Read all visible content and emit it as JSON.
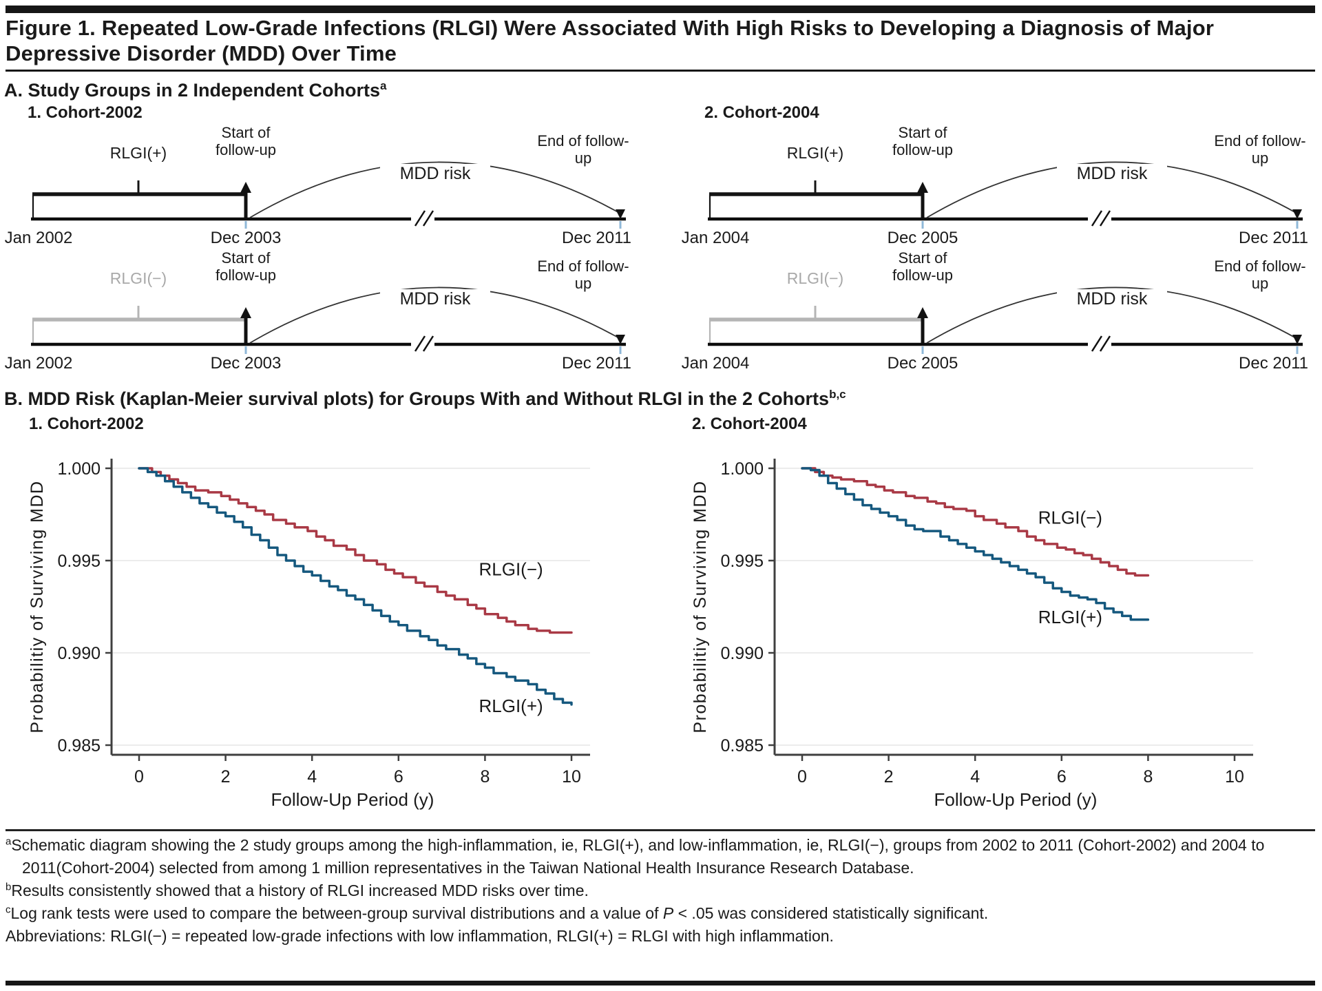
{
  "figure": {
    "title": "Figure 1. Repeated Low-Grade Infections (RLGI) Were Associated With High Risks to Developing a Diagnosis of Major Depressive Disorder (MDD) Over Time"
  },
  "panel_a": {
    "heading": "A. Study Groups in 2 Independent Cohorts",
    "heading_sup": "a",
    "labels": {
      "start": "Start of follow-up",
      "end": "End of follow-up",
      "risk": "MDD risk"
    },
    "cohorts": [
      {
        "title": "1. Cohort-2002",
        "dates": [
          "Jan 2002",
          "Dec 2003",
          "Dec 2011"
        ],
        "rows": [
          {
            "group": "RLGI(+)"
          },
          {
            "group": "RLGI(−)"
          }
        ]
      },
      {
        "title": "2. Cohort-2004",
        "dates": [
          "Jan 2004",
          "Dec 2005",
          "Dec 2011"
        ],
        "rows": [
          {
            "group": "RLGI(+)"
          },
          {
            "group": "RLGI(−)"
          }
        ]
      }
    ]
  },
  "panel_b": {
    "heading": "B. MDD Risk (Kaplan-Meier survival plots) for Groups With and Without RLGI in the 2 Cohorts",
    "heading_sup": "b,c"
  },
  "chart_data": [
    {
      "type": "line",
      "title": "1. Cohort-2002",
      "xlabel": "Follow-Up Period (y)",
      "ylabel": "Probabilitiy of Surviving MDD",
      "xlim": [
        0,
        10
      ],
      "xticks": [
        0,
        2,
        4,
        6,
        8,
        10
      ],
      "ytick_values": [
        1.0,
        0.995,
        0.99,
        0.985
      ],
      "ytick_labels": [
        "1.000",
        "0.995",
        "0.990",
        "0.985"
      ],
      "grid": "horizontal-faint",
      "legend_position": "inline-labels",
      "series": [
        {
          "name": "RLGI(−)",
          "color": "#a93945",
          "label_pos": [
            8.6,
            0.9942
          ],
          "points": [
            [
              0,
              1.0
            ],
            [
              0.3,
              0.9998
            ],
            [
              0.5,
              0.9996
            ],
            [
              0.7,
              0.9994
            ],
            [
              0.9,
              0.9992
            ],
            [
              1.1,
              0.999
            ],
            [
              1.3,
              0.9988
            ],
            [
              1.6,
              0.9987
            ],
            [
              1.9,
              0.9985
            ],
            [
              2.1,
              0.9983
            ],
            [
              2.3,
              0.9981
            ],
            [
              2.5,
              0.9979
            ],
            [
              2.7,
              0.9977
            ],
            [
              2.9,
              0.9975
            ],
            [
              3.1,
              0.9972
            ],
            [
              3.4,
              0.997
            ],
            [
              3.6,
              0.9968
            ],
            [
              3.9,
              0.9966
            ],
            [
              4.1,
              0.9963
            ],
            [
              4.3,
              0.9961
            ],
            [
              4.5,
              0.9958
            ],
            [
              4.8,
              0.9956
            ],
            [
              5.0,
              0.9953
            ],
            [
              5.2,
              0.995
            ],
            [
              5.5,
              0.9948
            ],
            [
              5.7,
              0.9945
            ],
            [
              5.9,
              0.9943
            ],
            [
              6.1,
              0.9941
            ],
            [
              6.4,
              0.9938
            ],
            [
              6.6,
              0.9936
            ],
            [
              6.9,
              0.9933
            ],
            [
              7.1,
              0.9931
            ],
            [
              7.3,
              0.9929
            ],
            [
              7.6,
              0.9926
            ],
            [
              7.8,
              0.9924
            ],
            [
              8.0,
              0.9921
            ],
            [
              8.3,
              0.9919
            ],
            [
              8.5,
              0.9917
            ],
            [
              8.7,
              0.9915
            ],
            [
              9.0,
              0.9913
            ],
            [
              9.2,
              0.9912
            ],
            [
              9.5,
              0.9911
            ],
            [
              9.7,
              0.9911
            ],
            [
              10.0,
              0.9911
            ]
          ]
        },
        {
          "name": "RLGI(+)",
          "color": "#15587e",
          "label_pos": [
            8.6,
            0.9868
          ],
          "points": [
            [
              0,
              1.0
            ],
            [
              0.2,
              0.9998
            ],
            [
              0.4,
              0.9996
            ],
            [
              0.6,
              0.9993
            ],
            [
              0.8,
              0.999
            ],
            [
              1.0,
              0.9987
            ],
            [
              1.2,
              0.9984
            ],
            [
              1.4,
              0.9981
            ],
            [
              1.6,
              0.9979
            ],
            [
              1.8,
              0.9976
            ],
            [
              2.0,
              0.9974
            ],
            [
              2.2,
              0.9971
            ],
            [
              2.4,
              0.9968
            ],
            [
              2.6,
              0.9964
            ],
            [
              2.8,
              0.9961
            ],
            [
              3.0,
              0.9957
            ],
            [
              3.2,
              0.9953
            ],
            [
              3.4,
              0.995
            ],
            [
              3.6,
              0.9947
            ],
            [
              3.8,
              0.9944
            ],
            [
              4.0,
              0.9942
            ],
            [
              4.2,
              0.9939
            ],
            [
              4.4,
              0.9936
            ],
            [
              4.6,
              0.9934
            ],
            [
              4.8,
              0.9931
            ],
            [
              5.0,
              0.9929
            ],
            [
              5.2,
              0.9926
            ],
            [
              5.4,
              0.9923
            ],
            [
              5.6,
              0.992
            ],
            [
              5.8,
              0.9917
            ],
            [
              6.0,
              0.9915
            ],
            [
              6.2,
              0.9912
            ],
            [
              6.5,
              0.9909
            ],
            [
              6.7,
              0.9907
            ],
            [
              6.9,
              0.9904
            ],
            [
              7.1,
              0.9902
            ],
            [
              7.4,
              0.9899
            ],
            [
              7.6,
              0.9897
            ],
            [
              7.8,
              0.9894
            ],
            [
              8.0,
              0.9892
            ],
            [
              8.2,
              0.9889
            ],
            [
              8.5,
              0.9887
            ],
            [
              8.7,
              0.9885
            ],
            [
              9.0,
              0.9883
            ],
            [
              9.2,
              0.988
            ],
            [
              9.4,
              0.9878
            ],
            [
              9.6,
              0.9875
            ],
            [
              9.8,
              0.9873
            ],
            [
              10.0,
              0.9872
            ]
          ]
        }
      ]
    },
    {
      "type": "line",
      "title": "2. Cohort-2004",
      "xlabel": "Follow-Up Period (y)",
      "ylabel": "Probabilitiy of Surviving MDD",
      "xlim": [
        0,
        10
      ],
      "xticks": [
        0,
        2,
        4,
        6,
        8,
        10
      ],
      "ytick_values": [
        1.0,
        0.995,
        0.99,
        0.985
      ],
      "ytick_labels": [
        "1.000",
        "0.995",
        "0.990",
        "0.985"
      ],
      "grid": "horizontal-faint",
      "legend_position": "inline-labels",
      "series": [
        {
          "name": "RLGI(−)",
          "color": "#a93945",
          "label_pos": [
            6.2,
            0.997
          ],
          "points": [
            [
              0,
              1.0
            ],
            [
              0.3,
              0.9998
            ],
            [
              0.5,
              0.9996
            ],
            [
              0.7,
              0.9995
            ],
            [
              0.9,
              0.9994
            ],
            [
              1.2,
              0.9993
            ],
            [
              1.5,
              0.9991
            ],
            [
              1.7,
              0.999
            ],
            [
              1.9,
              0.9988
            ],
            [
              2.1,
              0.9987
            ],
            [
              2.4,
              0.9985
            ],
            [
              2.6,
              0.9984
            ],
            [
              2.9,
              0.9982
            ],
            [
              3.1,
              0.9981
            ],
            [
              3.3,
              0.9979
            ],
            [
              3.5,
              0.9978
            ],
            [
              3.8,
              0.9977
            ],
            [
              4.0,
              0.9974
            ],
            [
              4.2,
              0.9972
            ],
            [
              4.5,
              0.997
            ],
            [
              4.7,
              0.9968
            ],
            [
              5.0,
              0.9966
            ],
            [
              5.2,
              0.9963
            ],
            [
              5.4,
              0.9961
            ],
            [
              5.6,
              0.9959
            ],
            [
              5.9,
              0.9957
            ],
            [
              6.1,
              0.9956
            ],
            [
              6.3,
              0.9954
            ],
            [
              6.5,
              0.9953
            ],
            [
              6.7,
              0.9951
            ],
            [
              6.9,
              0.9949
            ],
            [
              7.1,
              0.9947
            ],
            [
              7.3,
              0.9945
            ],
            [
              7.5,
              0.9943
            ],
            [
              7.7,
              0.9942
            ],
            [
              8.0,
              0.9942
            ]
          ]
        },
        {
          "name": "RLGI(+)",
          "color": "#15587e",
          "label_pos": [
            6.2,
            0.9916
          ],
          "points": [
            [
              0,
              1.0
            ],
            [
              0.2,
              0.9999
            ],
            [
              0.4,
              0.9996
            ],
            [
              0.6,
              0.9992
            ],
            [
              0.8,
              0.9989
            ],
            [
              1.0,
              0.9986
            ],
            [
              1.2,
              0.9983
            ],
            [
              1.4,
              0.998
            ],
            [
              1.6,
              0.9978
            ],
            [
              1.8,
              0.9976
            ],
            [
              2.0,
              0.9974
            ],
            [
              2.2,
              0.9972
            ],
            [
              2.4,
              0.9969
            ],
            [
              2.6,
              0.9967
            ],
            [
              2.8,
              0.9966
            ],
            [
              3.0,
              0.9966
            ],
            [
              3.2,
              0.9963
            ],
            [
              3.4,
              0.9961
            ],
            [
              3.6,
              0.9959
            ],
            [
              3.8,
              0.9957
            ],
            [
              4.0,
              0.9955
            ],
            [
              4.2,
              0.9953
            ],
            [
              4.4,
              0.9951
            ],
            [
              4.6,
              0.9949
            ],
            [
              4.8,
              0.9947
            ],
            [
              5.0,
              0.9945
            ],
            [
              5.2,
              0.9943
            ],
            [
              5.4,
              0.9941
            ],
            [
              5.6,
              0.9938
            ],
            [
              5.8,
              0.9935
            ],
            [
              6.0,
              0.9933
            ],
            [
              6.2,
              0.9931
            ],
            [
              6.4,
              0.993
            ],
            [
              6.6,
              0.9929
            ],
            [
              6.8,
              0.9927
            ],
            [
              7.0,
              0.9924
            ],
            [
              7.2,
              0.9922
            ],
            [
              7.4,
              0.992
            ],
            [
              7.6,
              0.9918
            ],
            [
              8.0,
              0.9918
            ]
          ]
        }
      ]
    }
  ],
  "footnotes": [
    {
      "sup": "a",
      "text": "Schematic diagram showing the 2 study groups among the high-inflammation, ie, RLGI(+), and low-inflammation, ie, RLGI(−), groups from 2002 to 2011 (Cohort-2002) and 2004 to 2011(Cohort-2004) selected from among 1 million representatives in the Taiwan National Health Insurance Research Database."
    },
    {
      "sup": "b",
      "text": "Results consistently showed that a history of RLGI increased MDD risks over time."
    },
    {
      "sup": "c",
      "pre": "Log rank tests were used to compare the between-group survival distributions and a value of ",
      "italic": "P",
      "post": " < .05 was considered statistically significant."
    },
    {
      "sup": "",
      "text": "Abbreviations: RLGI(−) = repeated low-grade infections with low inflammation, RLGI(+) = RLGI with high inflammation."
    }
  ],
  "colors": {
    "rlgi_neg_curve": "#a93945",
    "rlgi_pos_curve": "#15587e",
    "bracket_gray": "#b5b5b5",
    "followup_tick_blue": "#8fb8d8"
  }
}
